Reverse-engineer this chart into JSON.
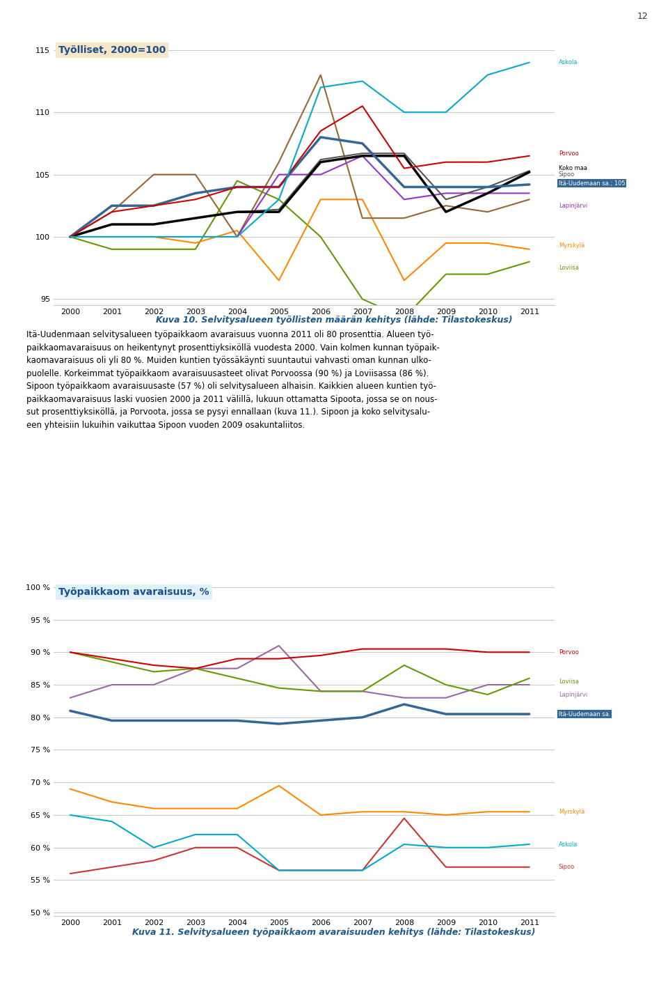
{
  "years": [
    2000,
    2001,
    2002,
    2003,
    2004,
    2005,
    2006,
    2007,
    2008,
    2009,
    2010,
    2011
  ],
  "chart1_title": "Työlliset, 2000=100",
  "chart1_yticks": [
    95,
    100,
    105,
    110,
    115
  ],
  "chart1_series": {
    "Askola": {
      "color": "#00AACC",
      "values": [
        100,
        100,
        100,
        100,
        100,
        103,
        112,
        112.5,
        110,
        110,
        113,
        114
      ],
      "lw": 1.5
    },
    "Porvoo": {
      "color": "#CC0000",
      "values": [
        100,
        102,
        102.5,
        103,
        104,
        104,
        108.5,
        110.5,
        105.5,
        106,
        106,
        106.5
      ],
      "lw": 1.5
    },
    "Koko maa": {
      "color": "#000000",
      "values": [
        100,
        101,
        101,
        101.5,
        102,
        102,
        106,
        106.5,
        106.5,
        102,
        103.5,
        105.2
      ],
      "lw": 2.5
    },
    "Sipoo": {
      "color": "#555555",
      "values": [
        100,
        101,
        101,
        101.5,
        102,
        102.2,
        106.2,
        106.7,
        106.7,
        103,
        104,
        105.3
      ],
      "lw": 1.5
    },
    "Ita-Uudemaan": {
      "color": "#336699",
      "values": [
        100,
        102.5,
        102.5,
        103.5,
        104,
        104,
        108,
        107.5,
        104,
        104,
        104,
        104.2
      ],
      "lw": 2.5
    },
    "Lapinjarvi": {
      "color": "#9933CC",
      "values": [
        100,
        100,
        100,
        100,
        100,
        105,
        105,
        106.5,
        103,
        103.5,
        103.5,
        103.5
      ],
      "lw": 1.5
    },
    "Myrskylaold": {
      "color": "#996633",
      "values": [
        100,
        102,
        105,
        105,
        100,
        106,
        113,
        101.5,
        101.5,
        102.5,
        102,
        103
      ],
      "lw": 1.5
    },
    "Loviisa": {
      "color": "#669900",
      "values": [
        100,
        99,
        99,
        99,
        104.5,
        103,
        100,
        95,
        93.5,
        97,
        97,
        98
      ],
      "lw": 1.5
    },
    "Myrskyla": {
      "color": "#FF8800",
      "values": [
        100,
        100,
        100,
        99.5,
        100.5,
        96.5,
        103,
        103,
        96.5,
        99.5,
        99.5,
        99
      ],
      "lw": 1.5
    }
  },
  "chart2_title": "Työpaikkaom avaraisuus, %",
  "chart2_yticks": [
    50,
    55,
    60,
    65,
    70,
    75,
    80,
    85,
    90,
    95,
    100
  ],
  "chart2_yticklabels": [
    "50 %",
    "55 %",
    "60 %",
    "65 %",
    "70 %",
    "75 %",
    "80 %",
    "85 %",
    "90 %",
    "95 %",
    "100 %"
  ],
  "chart2_series": {
    "Porvoo": {
      "color": "#CC0000",
      "values": [
        90,
        89,
        88,
        87.5,
        89,
        89,
        89.5,
        90.5,
        90.5,
        90.5,
        90,
        90
      ],
      "lw": 1.5
    },
    "Loviisa": {
      "color": "#669900",
      "values": [
        90,
        88.5,
        87,
        87.5,
        86,
        84.5,
        84,
        84,
        88,
        85,
        83.5,
        86
      ],
      "lw": 1.5
    },
    "Lapinjarvi": {
      "color": "#9966AA",
      "values": [
        83,
        85,
        85,
        87.5,
        87.5,
        91,
        84,
        84,
        83,
        83,
        85,
        85
      ],
      "lw": 1.5
    },
    "Ita-Uudemaan": {
      "color": "#336699",
      "values": [
        81,
        79.5,
        79.5,
        79.5,
        79.5,
        79,
        79.5,
        80,
        82,
        80.5,
        80.5,
        80.5
      ],
      "lw": 2.5
    },
    "Myrskyla": {
      "color": "#FF8800",
      "values": [
        69,
        67,
        66,
        66,
        66,
        69.5,
        65,
        65.5,
        65.5,
        65,
        65.5,
        65.5
      ],
      "lw": 1.5
    },
    "Askola": {
      "color": "#00AACC",
      "values": [
        65,
        64,
        60,
        62,
        62,
        56.5,
        56.5,
        56.5,
        60.5,
        60,
        60,
        60.5
      ],
      "lw": 1.5
    },
    "Sipoo": {
      "color": "#CC3333",
      "values": [
        56,
        57,
        58,
        60,
        60,
        56.5,
        56.5,
        56.5,
        64.5,
        57,
        57,
        57
      ],
      "lw": 1.5
    }
  },
  "chart1_caption": "Kuva 10. Selvitysalueen työllisten määrän kehitys (lähde: Tilastokeskus)",
  "chart2_caption": "Kuva 11. Selvitysalueen työpaikkaom avaraisuuden kehitys (lähde: Tilastokeskus)",
  "page_number": "12",
  "bg_color": "#FFFFFF",
  "grid_color": "#C8C8C8",
  "caption_color": "#1F5A8B",
  "axis_fontsize": 8
}
